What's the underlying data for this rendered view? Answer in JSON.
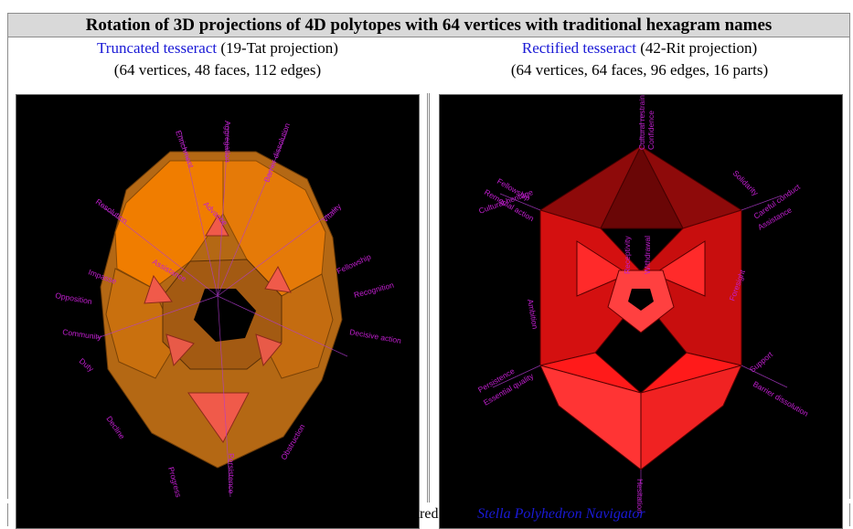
{
  "table": {
    "title": "Rotation of 3D projections of 4D polytopes with 64 vertices with traditional hexagram names"
  },
  "left": {
    "link_text": "Truncated tesseract",
    "caption_rest": " (19-Tat projection)",
    "caption_line2": "(64 vertices, 48 faces, 112 edges)",
    "labels": {
      "l1": "Enrichment",
      "l2": "Aggregation",
      "l3": "Barrier dissolution",
      "l4": "Resolution",
      "l5": "Vitality",
      "l6": "Advance",
      "l7": "Assistance",
      "l8": "Impasse",
      "l9": "Fellowship",
      "l10": "Opposition",
      "l11": "Recognition",
      "l12": "Community",
      "l13": "Decisive action",
      "l14": "Duty",
      "l15": "Decline",
      "l16": "Progress",
      "l17": "Obstruction",
      "l18": "Persistence"
    }
  },
  "right": {
    "link_text": "Rectified tesseract",
    "caption_rest": " (42-Rit projection)",
    "caption_line2": "(64 vertices, 64 faces, 96 edges, 16 parts)",
    "labels": {
      "r1": "Cultural restraint",
      "r2": "Confidence",
      "r3": "Remedial action",
      "r4": "Cultural heritage",
      "r5": "Solidarity",
      "r6": "Careful conduct",
      "r7": "Assistance",
      "r8": "Receptivity",
      "r9": "Withdrawal",
      "r10": "Persistence",
      "r11": "Essential quality",
      "r12": "Barrier dissolution",
      "r13": "Support",
      "r14": "Hesitation",
      "r15": "Ambition",
      "r16": "Fellowship",
      "r17": "Foresight"
    }
  },
  "footer": {
    "prefix": "Animations above and below prepared using ",
    "link_text": "Stella Polyhedron Navigator"
  },
  "colors": {
    "orange_face": "#f07d00",
    "brown_face": "#b46814",
    "pink_face": "#f05a4a",
    "red_face": "#e51212",
    "label": "#c21fd0"
  }
}
